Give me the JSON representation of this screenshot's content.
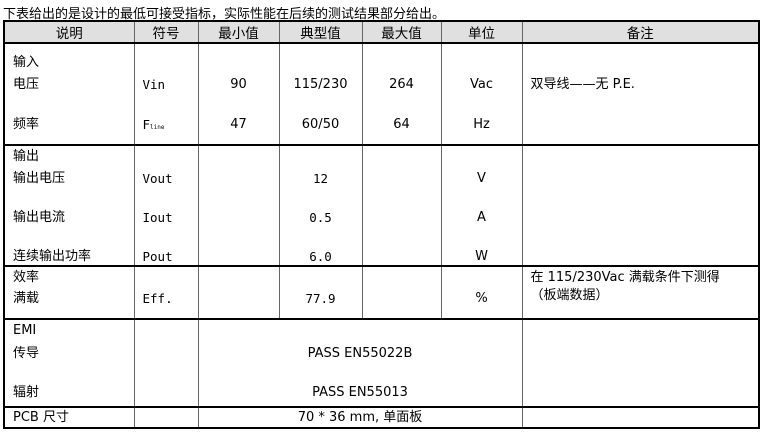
{
  "intro": "下表给出的是设计的最低可接受指标，实际性能在后续的测试结果部分给出。",
  "headers": [
    "说明",
    "符号",
    "最小值",
    "典型值",
    "最大值",
    "单位",
    "备注"
  ],
  "input": {
    "section": "输入",
    "voltage": {
      "label": "电压",
      "symbol": "Vin",
      "min": "90",
      "typ": "115/230",
      "max": "264",
      "unit": "Vac",
      "note": "双导线——无 P.E."
    },
    "frequency": {
      "label": "频率",
      "symbol": "F",
      "symbol_sub": "line",
      "min": "47",
      "typ": "60/50",
      "max": "64",
      "unit": "Hz"
    }
  },
  "output": {
    "section": "输出",
    "voltage": {
      "label": "输出电压",
      "symbol": "Vout",
      "typ": "12",
      "unit": "V"
    },
    "current": {
      "label": "输出电流",
      "symbol": "Iout",
      "typ": "0.5",
      "unit": "A"
    },
    "power": {
      "label": "连续输出功率",
      "symbol": "Pout",
      "typ": "6.0",
      "unit": "W"
    }
  },
  "efficiency": {
    "section": "效率",
    "label": "满载",
    "symbol": "Eff.",
    "typ": "77.9",
    "unit": "%",
    "note_line1": "在 115/230Vac 满载条件下测得",
    "note_line2": "（板端数据）"
  },
  "emi": {
    "section": "EMI",
    "conducted": {
      "label": "传导",
      "value": "PASS EN55022B"
    },
    "radiated": {
      "label": "辐射",
      "value": "PASS EN55013"
    }
  },
  "pcb": {
    "label": "PCB 尺寸",
    "value": "70 * 36 mm, 单面板"
  }
}
